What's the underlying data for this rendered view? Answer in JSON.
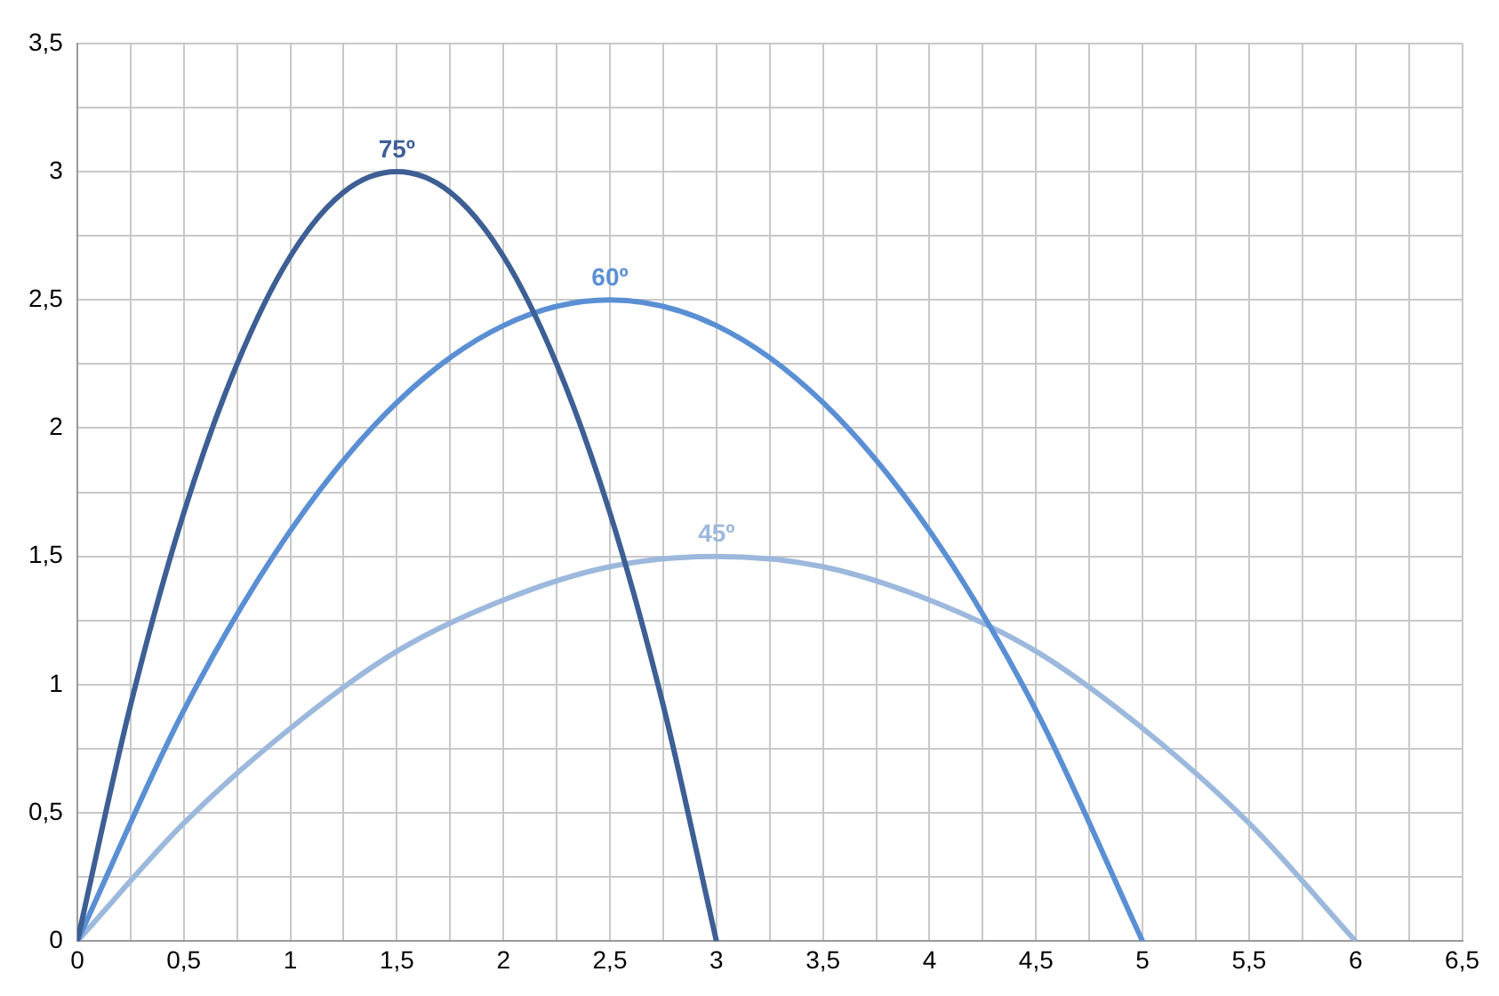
{
  "chart_data": {
    "type": "line",
    "series": [
      {
        "name": "75º",
        "color": "#3d5f94",
        "x": [
          0,
          0.25,
          0.5,
          0.75,
          1,
          1.25,
          1.5,
          1.75,
          2,
          2.25,
          2.5,
          2.75,
          3
        ],
        "values": [
          0,
          0.92,
          1.67,
          2.25,
          2.67,
          2.92,
          3,
          2.92,
          2.67,
          2.25,
          1.67,
          0.92,
          0
        ]
      },
      {
        "name": "60º",
        "color": "#5a8fd4",
        "x": [
          0,
          0.5,
          1,
          1.5,
          2,
          2.5,
          3,
          3.5,
          4,
          4.5,
          5
        ],
        "values": [
          0,
          0.9,
          1.6,
          2.1,
          2.4,
          2.5,
          2.4,
          2.1,
          1.6,
          0.9,
          0
        ]
      },
      {
        "name": "45º",
        "color": "#9cb8dc",
        "x": [
          0,
          0.5,
          1,
          1.5,
          2,
          2.5,
          3,
          3.5,
          4,
          4.5,
          5,
          5.5,
          6
        ],
        "values": [
          0,
          0.46,
          0.83,
          1.13,
          1.33,
          1.46,
          1.5,
          1.46,
          1.33,
          1.13,
          0.83,
          0.46,
          0
        ]
      }
    ],
    "xlim": [
      0,
      6.5
    ],
    "xticks": [
      0,
      {
        "value": 0.25,
        "label": null
      },
      {
        "value": 0.5,
        "label": "0,5"
      },
      {
        "value": 0.75,
        "label": null
      },
      1,
      {
        "value": 1.25,
        "label": null
      },
      {
        "value": 1.5,
        "label": "1,5"
      },
      {
        "value": 1.75,
        "label": null
      },
      2,
      {
        "value": 2.25,
        "label": null
      },
      {
        "value": 2.5,
        "label": "2,5"
      },
      {
        "value": 2.75,
        "label": null
      },
      3,
      {
        "value": 3.25,
        "label": null
      },
      {
        "value": 3.5,
        "label": "3,5"
      },
      {
        "value": 3.75,
        "label": null
      },
      4,
      {
        "value": 4.25,
        "label": null
      },
      {
        "value": 4.5,
        "label": "4,5"
      },
      {
        "value": 4.75,
        "label": null
      },
      5,
      {
        "value": 5.25,
        "label": null
      },
      {
        "value": 5.5,
        "label": "5,5"
      },
      {
        "value": 5.75,
        "label": null
      },
      6,
      {
        "value": 6.25,
        "label": null
      },
      {
        "value": 6.5,
        "label": "6,5"
      }
    ],
    "ylim": [
      0,
      3.5
    ],
    "yticks": [
      0,
      {
        "value": 0.25,
        "label": null
      },
      {
        "value": 0.5,
        "label": "0,5"
      },
      {
        "value": 0.75,
        "label": null
      },
      1,
      {
        "value": 1.25,
        "label": null
      },
      {
        "value": 1.5,
        "label": "1,5"
      },
      {
        "value": 1.75,
        "label": null
      },
      2,
      {
        "value": 2.25,
        "label": null
      },
      {
        "value": 2.5,
        "label": "2,5"
      },
      {
        "value": 2.75,
        "label": null
      },
      3,
      {
        "value": 3.25,
        "label": null
      },
      {
        "value": 3.5,
        "label": "3,5"
      }
    ],
    "grid": true,
    "marker": "none",
    "line_style": "solid",
    "legend": false
  }
}
